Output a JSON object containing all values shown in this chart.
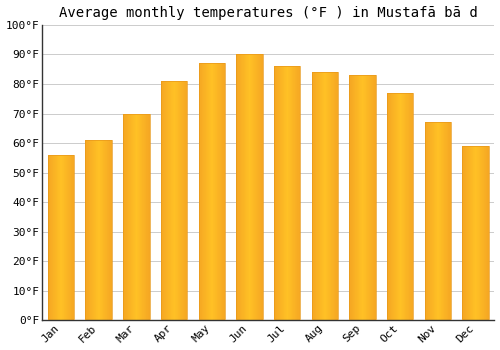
{
  "title": "Average monthly temperatures (°F ) in Mustafā bā d",
  "months": [
    "Jan",
    "Feb",
    "Mar",
    "Apr",
    "May",
    "Jun",
    "Jul",
    "Aug",
    "Sep",
    "Oct",
    "Nov",
    "Dec"
  ],
  "values": [
    56,
    61,
    70,
    81,
    87,
    90,
    86,
    84,
    83,
    77,
    67,
    59
  ],
  "bar_color_left": "#F5A623",
  "bar_color_center": "#FFC125",
  "bar_color_right": "#F5A623",
  "ylim": [
    0,
    100
  ],
  "yticks": [
    0,
    10,
    20,
    30,
    40,
    50,
    60,
    70,
    80,
    90,
    100
  ],
  "ytick_labels": [
    "0°F",
    "10°F",
    "20°F",
    "30°F",
    "40°F",
    "50°F",
    "60°F",
    "70°F",
    "80°F",
    "90°F",
    "100°F"
  ],
  "background_color": "#FFFFFF",
  "grid_color": "#CCCCCC",
  "bar_edge_color": "#E8981A",
  "title_fontsize": 10,
  "tick_fontsize": 8,
  "bar_width": 0.7
}
